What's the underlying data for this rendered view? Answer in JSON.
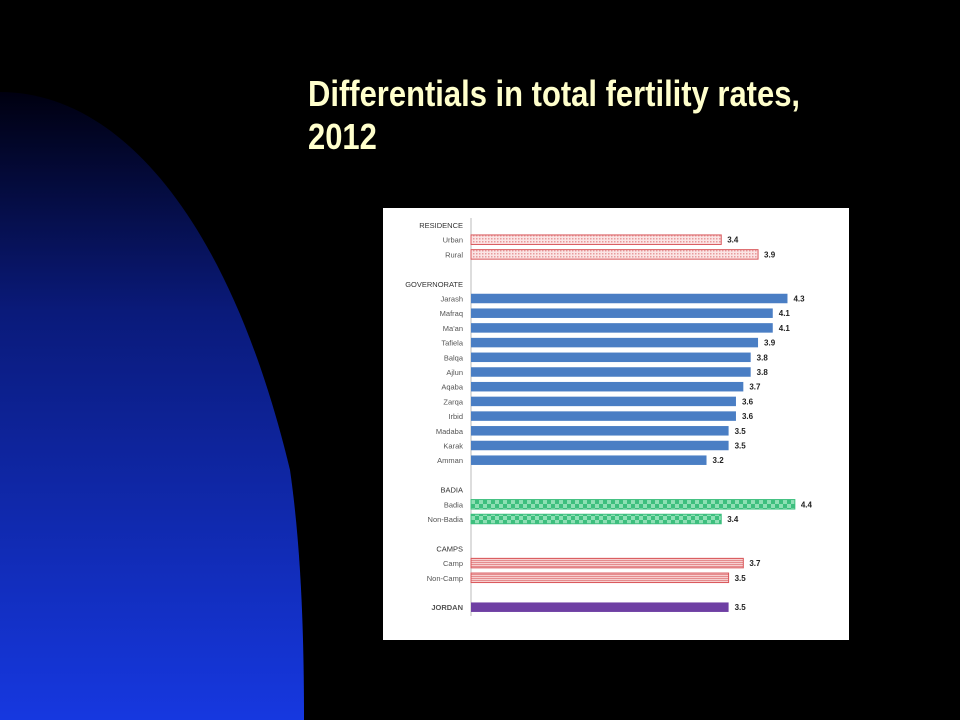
{
  "slide": {
    "title": "Differentials in total fertility rates, 2012"
  },
  "colors": {
    "background": "#000000",
    "title": "#FFFFCC",
    "left_gradient_top": "#000010",
    "left_gradient_bottom": "#1638E0",
    "residence_bar": "#D9575B",
    "governorate_bar": "#4A7EC4",
    "badia_bar": "#3DBF7E",
    "camps_bar": "#D9575B",
    "jordan_bar": "#6E3FA3"
  },
  "chart_data": {
    "type": "bar",
    "orientation": "horizontal",
    "value_range": [
      0,
      4.4
    ],
    "grid": false,
    "legend": "none",
    "groups": [
      {
        "name": "RESIDENCE",
        "color": "#D9575B",
        "pattern": "dots",
        "bars": [
          {
            "label": "Urban",
            "value": 3.4
          },
          {
            "label": "Rural",
            "value": 3.9
          }
        ]
      },
      {
        "name": "GOVERNORATE",
        "color": "#4A7EC4",
        "pattern": "solid",
        "bars": [
          {
            "label": "Jarash",
            "value": 4.3
          },
          {
            "label": "Mafraq",
            "value": 4.1
          },
          {
            "label": "Ma'an",
            "value": 4.1
          },
          {
            "label": "Tafiela",
            "value": 3.9
          },
          {
            "label": "Balqa",
            "value": 3.8
          },
          {
            "label": "Ajlun",
            "value": 3.8
          },
          {
            "label": "Aqaba",
            "value": 3.7
          },
          {
            "label": "Zarqa",
            "value": 3.6
          },
          {
            "label": "Irbid",
            "value": 3.6
          },
          {
            "label": "Madaba",
            "value": 3.5
          },
          {
            "label": "Karak",
            "value": 3.5
          },
          {
            "label": "Amman",
            "value": 3.2
          }
        ]
      },
      {
        "name": "BADIA",
        "color": "#3DBF7E",
        "pattern": "checker",
        "bars": [
          {
            "label": "Badia",
            "value": 4.4
          },
          {
            "label": "Non-Badia",
            "value": 3.4
          }
        ]
      },
      {
        "name": "CAMPS",
        "color": "#D9575B",
        "pattern": "stripes",
        "bars": [
          {
            "label": "Camp",
            "value": 3.7
          },
          {
            "label": "Non-Camp",
            "value": 3.5
          }
        ]
      },
      {
        "name": "",
        "color": "#6E3FA3",
        "pattern": "solid",
        "bars": [
          {
            "label": "JORDAN",
            "value": 3.5,
            "label_bold": true
          }
        ]
      }
    ]
  }
}
